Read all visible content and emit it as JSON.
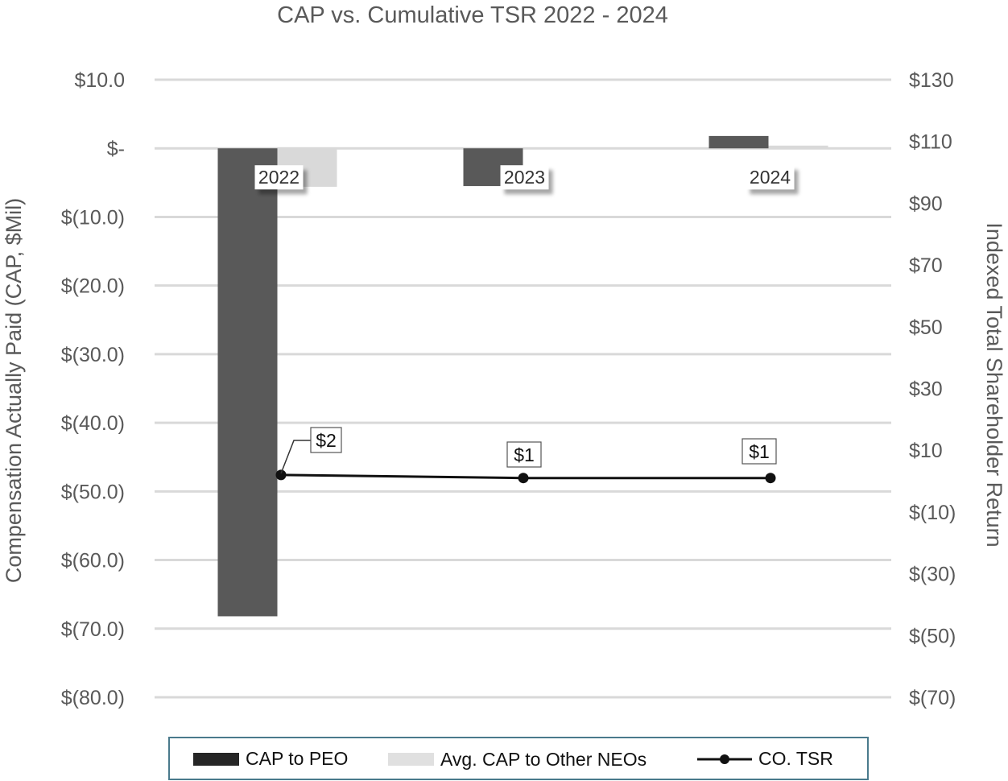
{
  "chart_data": {
    "type": "bar",
    "title": "CAP vs. Cumulative TSR 2022 - 2024",
    "ylabel": "Compensation Actually Paid (CAP, $Mil)",
    "y2label": "Indexed Total Shareholder Return",
    "categories": [
      "2022",
      "2023",
      "2024"
    ],
    "ylim": [
      -80,
      10
    ],
    "y2lim": [
      -70,
      130
    ],
    "y_ticks": [
      10,
      0,
      -10,
      -20,
      -30,
      -40,
      -50,
      -60,
      -70,
      -80
    ],
    "y_tick_labels": [
      "$10.0",
      "$-",
      "$(10.0)",
      "$(20.0)",
      "$(30.0)",
      "$(40.0)",
      "$(50.0)",
      "$(60.0)",
      "$(70.0)",
      "$(80.0)"
    ],
    "y2_ticks": [
      130,
      110,
      90,
      70,
      50,
      30,
      10,
      -10,
      -30,
      -50,
      -70
    ],
    "y2_tick_labels": [
      "$130",
      "$110",
      "$90",
      "$70",
      "$50",
      "$30",
      "$10",
      "$(10)",
      "$(30)",
      "$(50)",
      "$(70)"
    ],
    "grid": true,
    "legend_position": "bottom",
    "series": [
      {
        "name": "CAP to PEO",
        "kind": "bar",
        "axis": "left",
        "color": "#595959",
        "values": [
          -68.2,
          -5.5,
          1.8
        ]
      },
      {
        "name": "Avg. CAP to Other NEOs",
        "kind": "bar",
        "axis": "left",
        "color": "#d9d9d9",
        "values": [
          -5.6,
          0,
          0.4
        ]
      },
      {
        "name": "CO. TSR",
        "kind": "line",
        "axis": "right",
        "color": "#111111",
        "values": [
          2,
          1,
          1
        ],
        "data_labels": [
          "$2",
          "$1",
          "$1"
        ]
      }
    ],
    "legend": [
      {
        "name": "CAP to PEO",
        "swatch": "bar",
        "color": "#262626"
      },
      {
        "name": "Avg. CAP to Other NEOs",
        "swatch": "bar",
        "color": "#e0e0e0"
      },
      {
        "name": "CO. TSR",
        "swatch": "line-marker",
        "color": "#111111"
      }
    ],
    "colors": {
      "grid": "#d9d9d9",
      "text": "#595959",
      "legend_border": "#4a7a8c"
    }
  }
}
